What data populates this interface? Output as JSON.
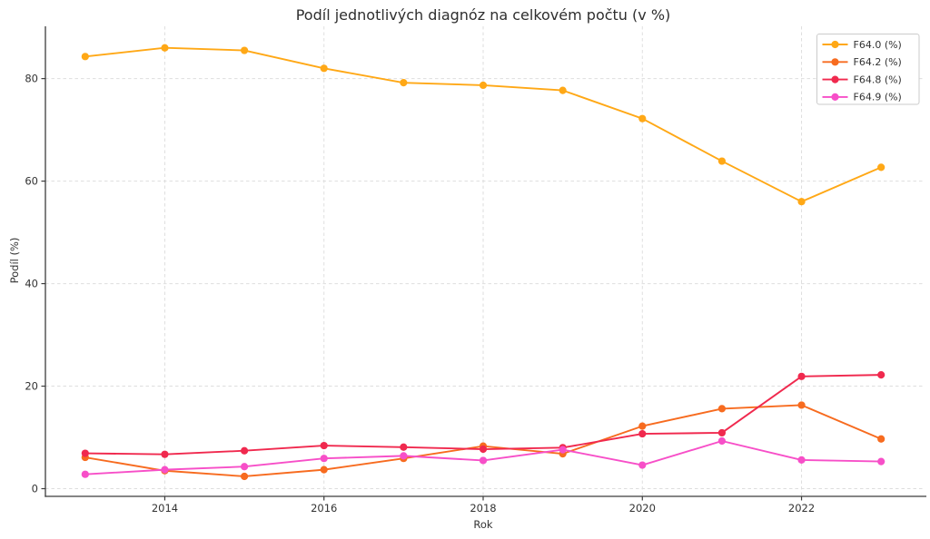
{
  "chart_data": {
    "type": "line",
    "title": "Podíl jednotlivých diagnóz na celkovém počtu (v %)",
    "xlabel": "Rok",
    "ylabel": "Podíl (%)",
    "x": [
      2013,
      2014,
      2015,
      2016,
      2017,
      2018,
      2019,
      2020,
      2021,
      2022,
      2023
    ],
    "series": [
      {
        "name": "F64.0 (%)",
        "color": "#FFA816",
        "values": [
          84.3,
          86.0,
          85.5,
          82.0,
          79.2,
          78.7,
          77.7,
          72.2,
          63.9,
          56.0,
          62.7
        ]
      },
      {
        "name": "F64.2 (%)",
        "color": "#F76B1F",
        "values": [
          6.1,
          3.5,
          2.4,
          3.7,
          5.9,
          8.3,
          6.8,
          12.2,
          15.6,
          16.3,
          9.7
        ]
      },
      {
        "name": "F64.8 (%)",
        "color": "#F0294E",
        "values": [
          6.9,
          6.7,
          7.4,
          8.4,
          8.1,
          7.7,
          8.0,
          10.7,
          10.9,
          21.9,
          22.2
        ]
      },
      {
        "name": "F64.9 (%)",
        "color": "#F74FC8",
        "values": [
          2.8,
          3.7,
          4.3,
          5.9,
          6.4,
          5.5,
          7.6,
          4.6,
          9.3,
          5.6,
          5.3
        ]
      }
    ],
    "xticks": [
      2014,
      2016,
      2018,
      2020,
      2022
    ],
    "yticks": [
      0,
      20,
      40,
      60,
      80
    ],
    "xlim": [
      2012.5,
      2023.5
    ],
    "ylim": [
      -1.5,
      90.2
    ],
    "grid": true,
    "grid_style": "dashed",
    "legend_position": "upper right",
    "colors": {
      "grid": "#dedede",
      "spine": "#3c3c3c",
      "tick_label": "#333333",
      "legend_border": "#cbcbcb",
      "legend_bg": "#ffffff"
    }
  }
}
